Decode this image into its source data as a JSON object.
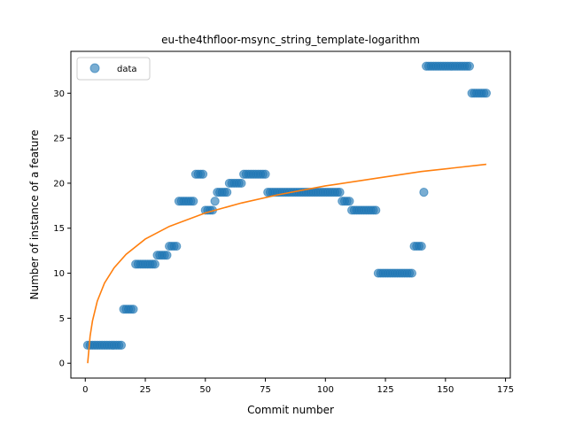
{
  "chart_data": {
    "type": "scatter",
    "title": "eu-the4thfloor-msync_string_template-logarithm",
    "xlabel": "Commit number",
    "ylabel": "Number of instance of a feature",
    "xlim": [
      -6,
      177
    ],
    "ylim": [
      -1.65,
      34.65
    ],
    "xticks": [
      0,
      25,
      50,
      75,
      100,
      125,
      150,
      175
    ],
    "yticks": [
      0,
      5,
      10,
      15,
      20,
      25,
      30
    ],
    "grid": false,
    "legend": {
      "placement": "upper-left",
      "entries": [
        "data"
      ]
    },
    "series": [
      {
        "name": "data",
        "kind": "scatter",
        "color": "#1f77b4",
        "points": [
          [
            1,
            2
          ],
          [
            2,
            2
          ],
          [
            3,
            2
          ],
          [
            4,
            2
          ],
          [
            5,
            2
          ],
          [
            6,
            2
          ],
          [
            7,
            2
          ],
          [
            8,
            2
          ],
          [
            9,
            2
          ],
          [
            10,
            2
          ],
          [
            11,
            2
          ],
          [
            12,
            2
          ],
          [
            13,
            2
          ],
          [
            14,
            2
          ],
          [
            15,
            2
          ],
          [
            16,
            6
          ],
          [
            17,
            6
          ],
          [
            18,
            6
          ],
          [
            19,
            6
          ],
          [
            20,
            6
          ],
          [
            21,
            11
          ],
          [
            22,
            11
          ],
          [
            23,
            11
          ],
          [
            24,
            11
          ],
          [
            25,
            11
          ],
          [
            26,
            11
          ],
          [
            27,
            11
          ],
          [
            28,
            11
          ],
          [
            29,
            11
          ],
          [
            30,
            12
          ],
          [
            31,
            12
          ],
          [
            32,
            12
          ],
          [
            33,
            12
          ],
          [
            34,
            12
          ],
          [
            35,
            13
          ],
          [
            36,
            13
          ],
          [
            37,
            13
          ],
          [
            38,
            13
          ],
          [
            39,
            18
          ],
          [
            40,
            18
          ],
          [
            41,
            18
          ],
          [
            42,
            18
          ],
          [
            43,
            18
          ],
          [
            44,
            18
          ],
          [
            45,
            18
          ],
          [
            46,
            21
          ],
          [
            47,
            21
          ],
          [
            48,
            21
          ],
          [
            49,
            21
          ],
          [
            50,
            17
          ],
          [
            51,
            17
          ],
          [
            52,
            17
          ],
          [
            53,
            17
          ],
          [
            54,
            18
          ],
          [
            55,
            19
          ],
          [
            56,
            19
          ],
          [
            57,
            19
          ],
          [
            58,
            19
          ],
          [
            59,
            19
          ],
          [
            60,
            20
          ],
          [
            61,
            20
          ],
          [
            62,
            20
          ],
          [
            63,
            20
          ],
          [
            64,
            20
          ],
          [
            65,
            20
          ],
          [
            66,
            21
          ],
          [
            67,
            21
          ],
          [
            68,
            21
          ],
          [
            69,
            21
          ],
          [
            70,
            21
          ],
          [
            71,
            21
          ],
          [
            72,
            21
          ],
          [
            73,
            21
          ],
          [
            74,
            21
          ],
          [
            75,
            21
          ],
          [
            76,
            19
          ],
          [
            77,
            19
          ],
          [
            78,
            19
          ],
          [
            79,
            19
          ],
          [
            80,
            19
          ],
          [
            81,
            19
          ],
          [
            82,
            19
          ],
          [
            83,
            19
          ],
          [
            84,
            19
          ],
          [
            85,
            19
          ],
          [
            86,
            19
          ],
          [
            87,
            19
          ],
          [
            88,
            19
          ],
          [
            89,
            19
          ],
          [
            90,
            19
          ],
          [
            91,
            19
          ],
          [
            92,
            19
          ],
          [
            93,
            19
          ],
          [
            94,
            19
          ],
          [
            95,
            19
          ],
          [
            96,
            19
          ],
          [
            97,
            19
          ],
          [
            98,
            19
          ],
          [
            99,
            19
          ],
          [
            100,
            19
          ],
          [
            101,
            19
          ],
          [
            102,
            19
          ],
          [
            103,
            19
          ],
          [
            104,
            19
          ],
          [
            105,
            19
          ],
          [
            106,
            19
          ],
          [
            107,
            18
          ],
          [
            108,
            18
          ],
          [
            109,
            18
          ],
          [
            110,
            18
          ],
          [
            111,
            17
          ],
          [
            112,
            17
          ],
          [
            113,
            17
          ],
          [
            114,
            17
          ],
          [
            115,
            17
          ],
          [
            116,
            17
          ],
          [
            117,
            17
          ],
          [
            118,
            17
          ],
          [
            119,
            17
          ],
          [
            120,
            17
          ],
          [
            121,
            17
          ],
          [
            122,
            10
          ],
          [
            123,
            10
          ],
          [
            124,
            10
          ],
          [
            125,
            10
          ],
          [
            126,
            10
          ],
          [
            127,
            10
          ],
          [
            128,
            10
          ],
          [
            129,
            10
          ],
          [
            130,
            10
          ],
          [
            131,
            10
          ],
          [
            132,
            10
          ],
          [
            133,
            10
          ],
          [
            134,
            10
          ],
          [
            135,
            10
          ],
          [
            136,
            10
          ],
          [
            137,
            13
          ],
          [
            138,
            13
          ],
          [
            139,
            13
          ],
          [
            140,
            13
          ],
          [
            141,
            19
          ],
          [
            142,
            33
          ],
          [
            143,
            33
          ],
          [
            144,
            33
          ],
          [
            145,
            33
          ],
          [
            146,
            33
          ],
          [
            147,
            33
          ],
          [
            148,
            33
          ],
          [
            149,
            33
          ],
          [
            150,
            33
          ],
          [
            151,
            33
          ],
          [
            152,
            33
          ],
          [
            153,
            33
          ],
          [
            154,
            33
          ],
          [
            155,
            33
          ],
          [
            156,
            33
          ],
          [
            157,
            33
          ],
          [
            158,
            33
          ],
          [
            159,
            33
          ],
          [
            160,
            33
          ],
          [
            161,
            30
          ],
          [
            162,
            30
          ],
          [
            163,
            30
          ],
          [
            164,
            30
          ],
          [
            165,
            30
          ],
          [
            166,
            30
          ],
          [
            167,
            30
          ]
        ]
      },
      {
        "name": "",
        "kind": "line",
        "color": "#ff7f0e",
        "function": "logarithmic fit",
        "points": [
          [
            1,
            0
          ],
          [
            2,
            3.0
          ],
          [
            3,
            4.7
          ],
          [
            5,
            6.9
          ],
          [
            8,
            8.9
          ],
          [
            12,
            10.6
          ],
          [
            17,
            12.1
          ],
          [
            25,
            13.8
          ],
          [
            35,
            15.2
          ],
          [
            50,
            16.7
          ],
          [
            65,
            17.8
          ],
          [
            80,
            18.7
          ],
          [
            100,
            19.7
          ],
          [
            120,
            20.5
          ],
          [
            140,
            21.3
          ],
          [
            167,
            22.1
          ]
        ]
      }
    ]
  }
}
